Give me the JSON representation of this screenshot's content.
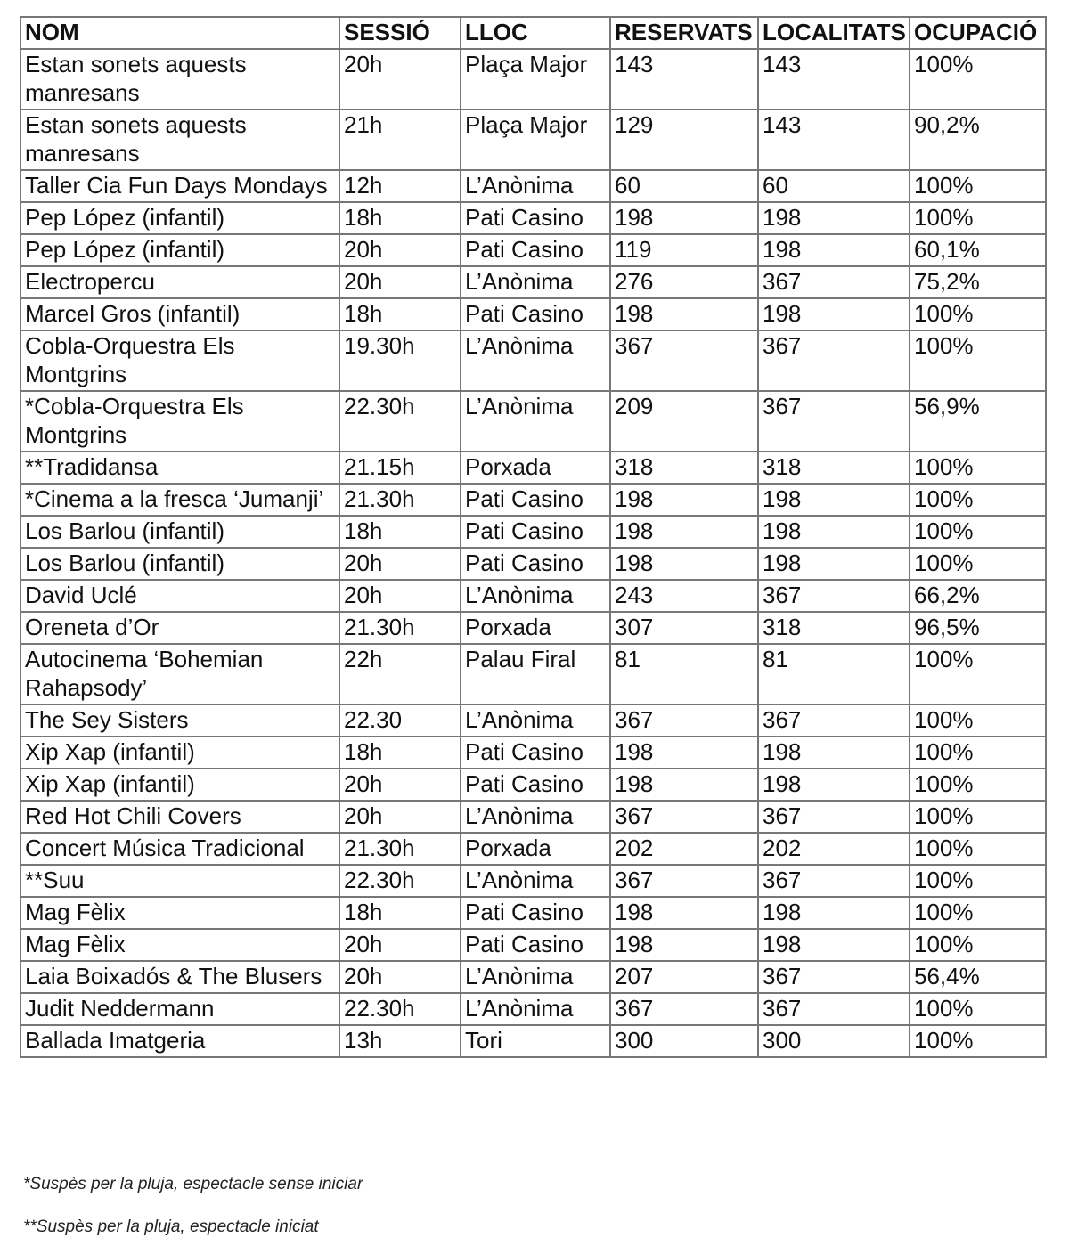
{
  "headers": [
    "NOM",
    "SESSIÓ",
    "LLOC",
    "RESERVATS",
    "LOCALITATS",
    "OCUPACIÓ"
  ],
  "rows": [
    [
      "Estan sonets aquests manresans",
      "20h",
      "Plaça Major",
      "143",
      "143",
      "100%"
    ],
    [
      "Estan sonets aquests manresans",
      "21h",
      "Plaça Major",
      "129",
      "143",
      "90,2%"
    ],
    [
      "Taller Cia Fun Days Mondays",
      "12h",
      "L’Anònima",
      "60",
      "60",
      "100%"
    ],
    [
      "Pep López (infantil)",
      "18h",
      "Pati Casino",
      "198",
      "198",
      "100%"
    ],
    [
      "Pep López (infantil)",
      "20h",
      "Pati Casino",
      "119",
      "198",
      "60,1%"
    ],
    [
      "Electropercu",
      "20h",
      "L’Anònima",
      "276",
      "367",
      "75,2%"
    ],
    [
      "Marcel Gros (infantil)",
      "18h",
      "Pati Casino",
      "198",
      "198",
      "100%"
    ],
    [
      "Cobla-Orquestra Els Montgrins",
      "19.30h",
      "L’Anònima",
      "367",
      "367",
      "100%"
    ],
    [
      "*Cobla-Orquestra Els Montgrins",
      "22.30h",
      "L’Anònima",
      "209",
      "367",
      "56,9%"
    ],
    [
      "**Tradidansa",
      "21.15h",
      "Porxada",
      "318",
      "318",
      "100%"
    ],
    [
      "*Cinema a la fresca ‘Jumanji’",
      "21.30h",
      "Pati Casino",
      "198",
      "198",
      "100%"
    ],
    [
      "Los Barlou (infantil)",
      "18h",
      "Pati Casino",
      "198",
      "198",
      "100%"
    ],
    [
      "Los Barlou (infantil)",
      "20h",
      "Pati Casino",
      "198",
      "198",
      "100%"
    ],
    [
      "David Uclé",
      "20h",
      "L’Anònima",
      "243",
      "367",
      "66,2%"
    ],
    [
      "Oreneta d’Or",
      "21.30h",
      "Porxada",
      "307",
      "318",
      "96,5%"
    ],
    [
      "Autocinema ‘Bohemian Rahapsody’",
      "22h",
      "Palau Firal",
      "81",
      "81",
      "100%"
    ],
    [
      "The Sey Sisters",
      "22.30",
      "L’Anònima",
      "367",
      "367",
      "100%"
    ],
    [
      "Xip Xap (infantil)",
      "18h",
      "Pati Casino",
      "198",
      "198",
      "100%"
    ],
    [
      "Xip Xap (infantil)",
      "20h",
      "Pati Casino",
      "198",
      "198",
      "100%"
    ],
    [
      "Red Hot Chili Covers",
      "20h",
      "L’Anònima",
      "367",
      "367",
      "100%"
    ],
    [
      "Concert Música Tradicional",
      "21.30h",
      "Porxada",
      "202",
      "202",
      "100%"
    ],
    [
      "**Suu",
      "22.30h",
      "L’Anònima",
      "367",
      "367",
      "100%"
    ],
    [
      "Mag Fèlix",
      "18h",
      "Pati Casino",
      "198",
      "198",
      "100%"
    ],
    [
      "Mag Fèlix",
      "20h",
      "Pati Casino",
      "198",
      "198",
      "100%"
    ],
    [
      "Laia Boixadós & The Blusers",
      "20h",
      "L’Anònima",
      "207",
      "367",
      "56,4%"
    ],
    [
      "Judit Neddermann",
      "22.30h",
      "L’Anònima",
      "367",
      "367",
      "100%"
    ],
    [
      "Ballada Imatgeria",
      "13h",
      "Tori",
      "300",
      "300",
      "100%"
    ]
  ],
  "footnotes": [
    "*Suspès per la pluja, espectacle sense iniciar",
    "**Suspès per la pluja, espectacle iniciat"
  ]
}
